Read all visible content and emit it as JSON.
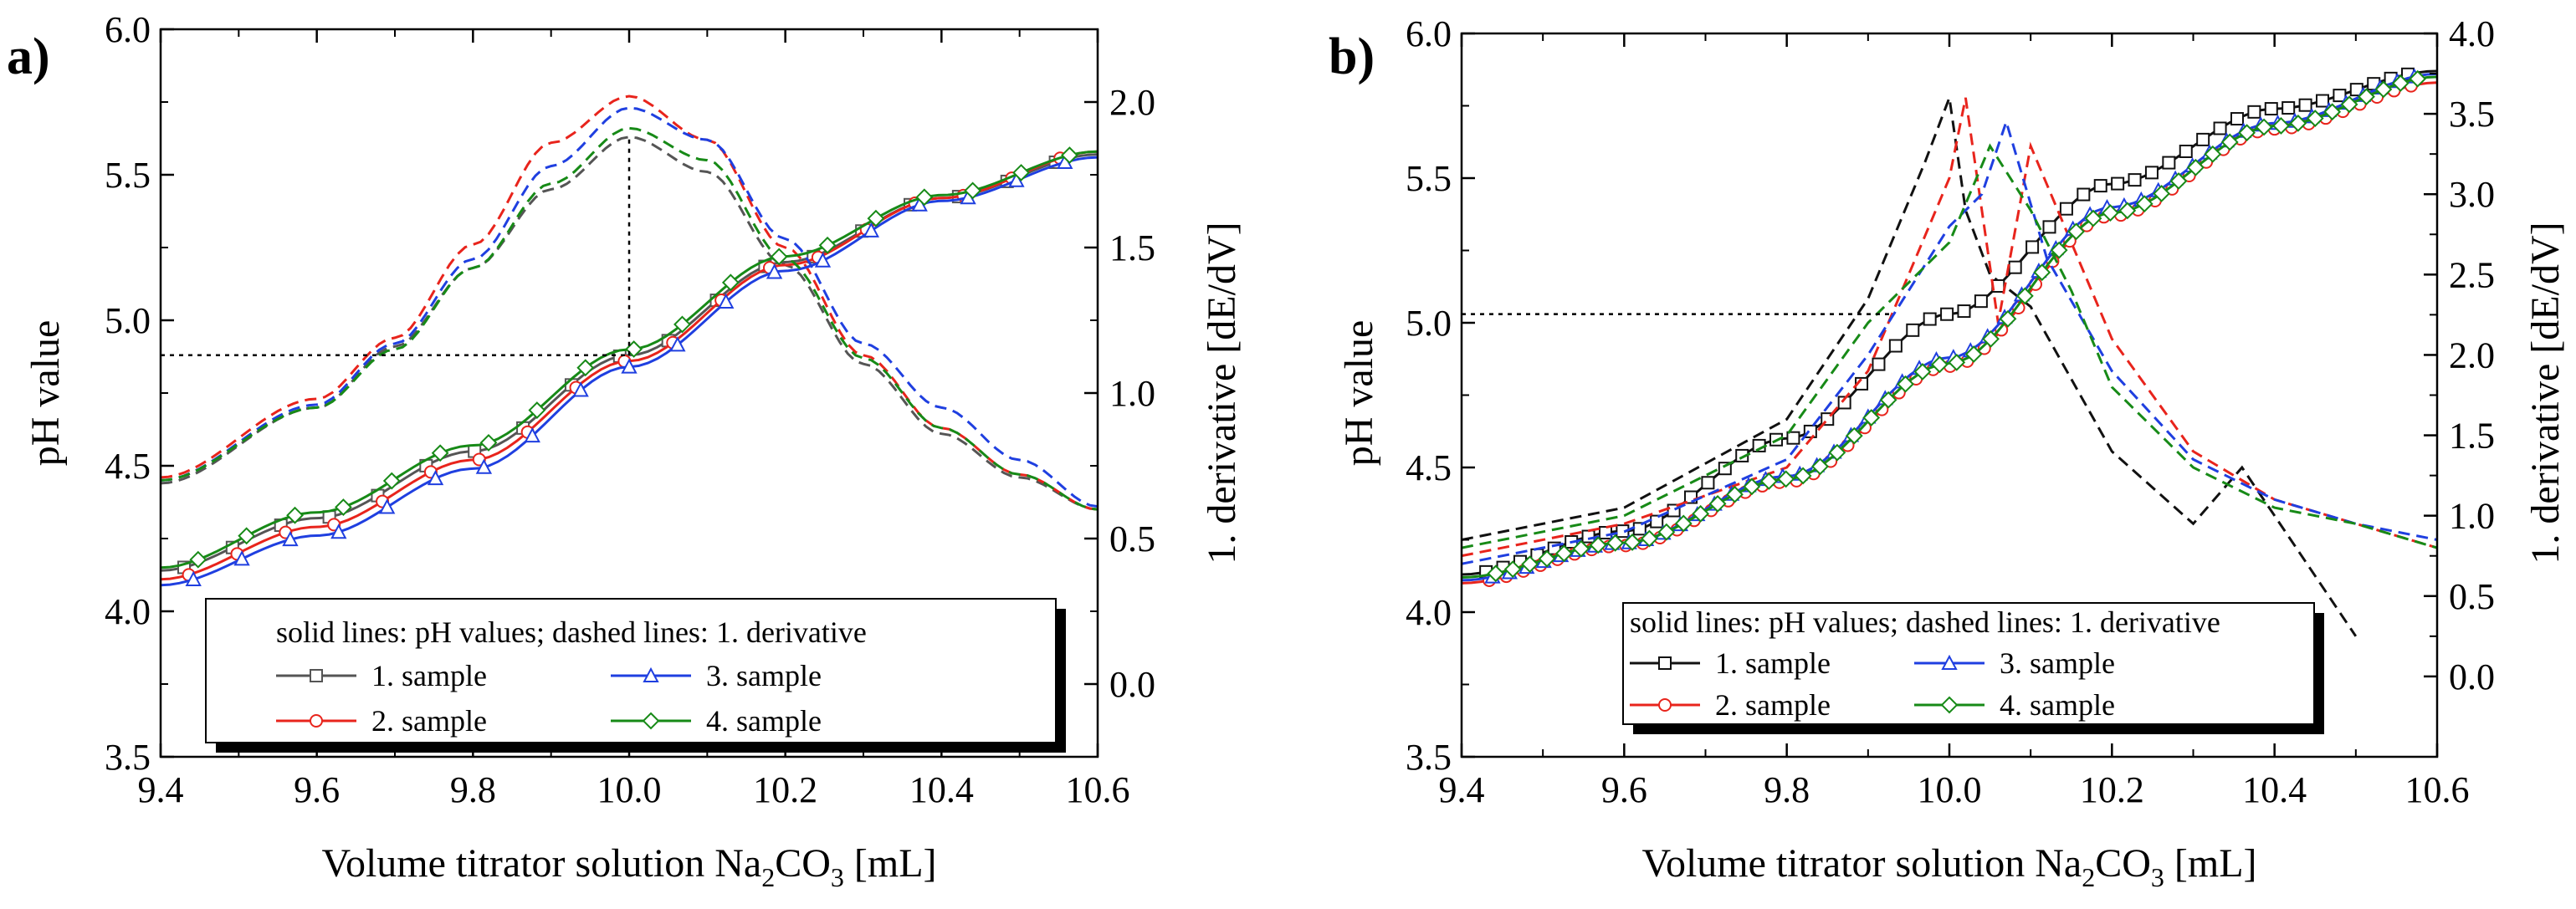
{
  "chart_data": [
    {
      "type": "line",
      "panel_label": "a)",
      "xlabel_main": "Volume titrator solution Na",
      "xlabel_sub1": "2",
      "xlabel_mid": "CO",
      "xlabel_sub2": "3",
      "xlabel_end": " [mL]",
      "ylabel": "pH value",
      "y2label": "1. derivative [dE/dV]",
      "xlim": [
        9.4,
        10.6
      ],
      "ylim": [
        3.5,
        6.0
      ],
      "y2lim": [
        -0.25,
        2.25
      ],
      "xticks": [
        "9.4",
        "9.6",
        "9.8",
        "10.0",
        "10.2",
        "10.4",
        "10.6"
      ],
      "yticks": [
        "3.5",
        "4.0",
        "4.5",
        "5.0",
        "5.5",
        "6.0"
      ],
      "y2ticks": [
        "0.0",
        "0.5",
        "1.0",
        "1.5",
        "2.0"
      ],
      "legend_title": "solid lines: pH values; dashed lines: 1. derivative",
      "legend": [
        "1. sample",
        "2. sample",
        "3. sample",
        "4. sample"
      ],
      "reference_lines": {
        "x": 10.0,
        "y": 4.88,
        "y2": 1.88
      },
      "series": [
        {
          "name": "1. sample",
          "color": "#555555",
          "marker": "square",
          "x": [
            9.4,
            9.6,
            9.8,
            10.0,
            10.2,
            10.4,
            10.6
          ],
          "ph": [
            4.14,
            4.32,
            4.55,
            4.88,
            5.2,
            5.42,
            5.57
          ],
          "deriv_x": [
            9.4,
            9.6,
            9.7,
            9.8,
            9.9,
            10.0,
            10.1,
            10.2,
            10.3,
            10.4,
            10.5,
            10.6
          ],
          "deriv": [
            0.69,
            0.95,
            1.16,
            1.43,
            1.7,
            1.88,
            1.76,
            1.44,
            1.1,
            0.86,
            0.71,
            0.6
          ]
        },
        {
          "name": "2. sample",
          "color": "#e8241c",
          "marker": "circle",
          "x": [
            9.4,
            9.6,
            9.8,
            10.0,
            10.2,
            10.4,
            10.6
          ],
          "ph": [
            4.11,
            4.29,
            4.52,
            4.86,
            5.19,
            5.42,
            5.58
          ],
          "deriv_x": [
            9.4,
            9.6,
            9.7,
            9.8,
            9.9,
            10.0,
            10.1,
            10.2,
            10.3,
            10.4,
            10.5,
            10.6
          ],
          "deriv": [
            0.71,
            0.98,
            1.19,
            1.51,
            1.86,
            2.02,
            1.87,
            1.5,
            1.13,
            0.88,
            0.72,
            0.6
          ]
        },
        {
          "name": "3. sample",
          "color": "#1f3fe0",
          "marker": "triangle",
          "x": [
            9.4,
            9.6,
            9.8,
            10.0,
            10.2,
            10.4,
            10.6
          ],
          "ph": [
            4.09,
            4.26,
            4.49,
            4.84,
            5.17,
            5.41,
            5.56
          ],
          "deriv_x": [
            9.4,
            9.6,
            9.7,
            9.8,
            9.9,
            10.0,
            10.1,
            10.2,
            10.3,
            10.4,
            10.5,
            10.6
          ],
          "deriv": [
            0.7,
            0.96,
            1.17,
            1.46,
            1.78,
            1.98,
            1.87,
            1.53,
            1.17,
            0.95,
            0.77,
            0.61
          ]
        },
        {
          "name": "4. sample",
          "color": "#178a17",
          "marker": "diamond",
          "x": [
            9.4,
            9.6,
            9.8,
            10.0,
            10.2,
            10.4,
            10.6
          ],
          "ph": [
            4.15,
            4.34,
            4.57,
            4.9,
            5.22,
            5.43,
            5.58
          ],
          "deriv_x": [
            9.4,
            9.6,
            9.7,
            9.8,
            9.9,
            10.0,
            10.1,
            10.2,
            10.3,
            10.4,
            10.5,
            10.6
          ],
          "deriv": [
            0.7,
            0.95,
            1.15,
            1.43,
            1.72,
            1.91,
            1.8,
            1.46,
            1.12,
            0.88,
            0.72,
            0.6
          ]
        }
      ]
    },
    {
      "type": "line",
      "panel_label": "b)",
      "xlabel_main": "Volume titrator solution Na",
      "xlabel_sub1": "2",
      "xlabel_mid": "CO",
      "xlabel_sub2": "3",
      "xlabel_end": " [mL]",
      "ylabel": "pH value",
      "y2label": "1. derivative [dE/dV]",
      "xlim": [
        9.4,
        10.6
      ],
      "ylim": [
        3.5,
        6.0
      ],
      "y2lim": [
        -0.5,
        4.0
      ],
      "xticks": [
        "9.4",
        "9.6",
        "9.8",
        "10.0",
        "10.2",
        "10.4",
        "10.6"
      ],
      "yticks": [
        "3.5",
        "4.0",
        "4.5",
        "5.0",
        "5.5",
        "6.0"
      ],
      "y2ticks": [
        "0.0",
        "0.5",
        "1.0",
        "1.5",
        "2.0",
        "2.5",
        "3.0",
        "3.5",
        "4.0"
      ],
      "legend_title": "solid lines: pH values; dashed lines: 1. derivative",
      "legend": [
        "1. sample",
        "2. sample",
        "3. sample",
        "4. sample"
      ],
      "reference_lines": {
        "x": 9.93,
        "y": 5.03
      },
      "series": [
        {
          "name": "1. sample",
          "color": "#111111",
          "marker": "square",
          "x": [
            9.4,
            9.6,
            9.8,
            10.0,
            10.2,
            10.4,
            10.6
          ],
          "ph": [
            4.13,
            4.28,
            4.6,
            5.03,
            5.48,
            5.74,
            5.87
          ],
          "deriv_x": [
            9.4,
            9.6,
            9.8,
            9.9,
            9.97,
            10.0,
            10.02,
            10.05,
            10.1,
            10.2,
            10.3,
            10.36,
            10.4,
            10.5
          ],
          "deriv": [
            0.85,
            1.05,
            1.6,
            2.35,
            3.2,
            3.6,
            2.9,
            2.5,
            2.3,
            1.4,
            0.95,
            1.3,
            1.0,
            0.25
          ]
        },
        {
          "name": "2. sample",
          "color": "#e8241c",
          "marker": "circle",
          "x": [
            9.4,
            9.6,
            9.8,
            10.0,
            10.2,
            10.4,
            10.6
          ],
          "ph": [
            4.1,
            4.23,
            4.45,
            4.85,
            5.37,
            5.67,
            5.83
          ],
          "deriv_x": [
            9.4,
            9.6,
            9.8,
            9.9,
            10.0,
            10.02,
            10.06,
            10.1,
            10.2,
            10.3,
            10.4,
            10.5,
            10.6
          ],
          "deriv": [
            0.75,
            0.95,
            1.3,
            1.9,
            3.1,
            3.6,
            2.2,
            3.3,
            2.1,
            1.4,
            1.1,
            0.95,
            0.8
          ]
        },
        {
          "name": "3. sample",
          "color": "#1f3fe0",
          "marker": "triangle",
          "x": [
            9.4,
            9.6,
            9.8,
            10.0,
            10.2,
            10.4,
            10.6
          ],
          "ph": [
            4.11,
            4.24,
            4.47,
            4.88,
            5.4,
            5.69,
            5.86
          ],
          "deriv_x": [
            9.4,
            9.6,
            9.8,
            9.9,
            10.0,
            10.04,
            10.07,
            10.12,
            10.2,
            10.3,
            10.4,
            10.5,
            10.6
          ],
          "deriv": [
            0.7,
            0.9,
            1.35,
            2.0,
            2.8,
            3.0,
            3.45,
            2.6,
            1.9,
            1.35,
            1.1,
            0.95,
            0.85
          ]
        },
        {
          "name": "4. sample",
          "color": "#178a17",
          "marker": "diamond",
          "x": [
            9.4,
            9.6,
            9.8,
            10.0,
            10.2,
            10.4,
            10.6
          ],
          "ph": [
            4.12,
            4.24,
            4.46,
            4.86,
            5.38,
            5.68,
            5.85
          ],
          "deriv_x": [
            9.4,
            9.6,
            9.8,
            9.9,
            10.0,
            10.05,
            10.1,
            10.15,
            10.2,
            10.3,
            10.4,
            10.5,
            10.6
          ],
          "deriv": [
            0.8,
            1.0,
            1.5,
            2.2,
            2.7,
            3.3,
            2.9,
            2.4,
            1.8,
            1.3,
            1.05,
            0.95,
            0.8
          ]
        }
      ]
    }
  ]
}
